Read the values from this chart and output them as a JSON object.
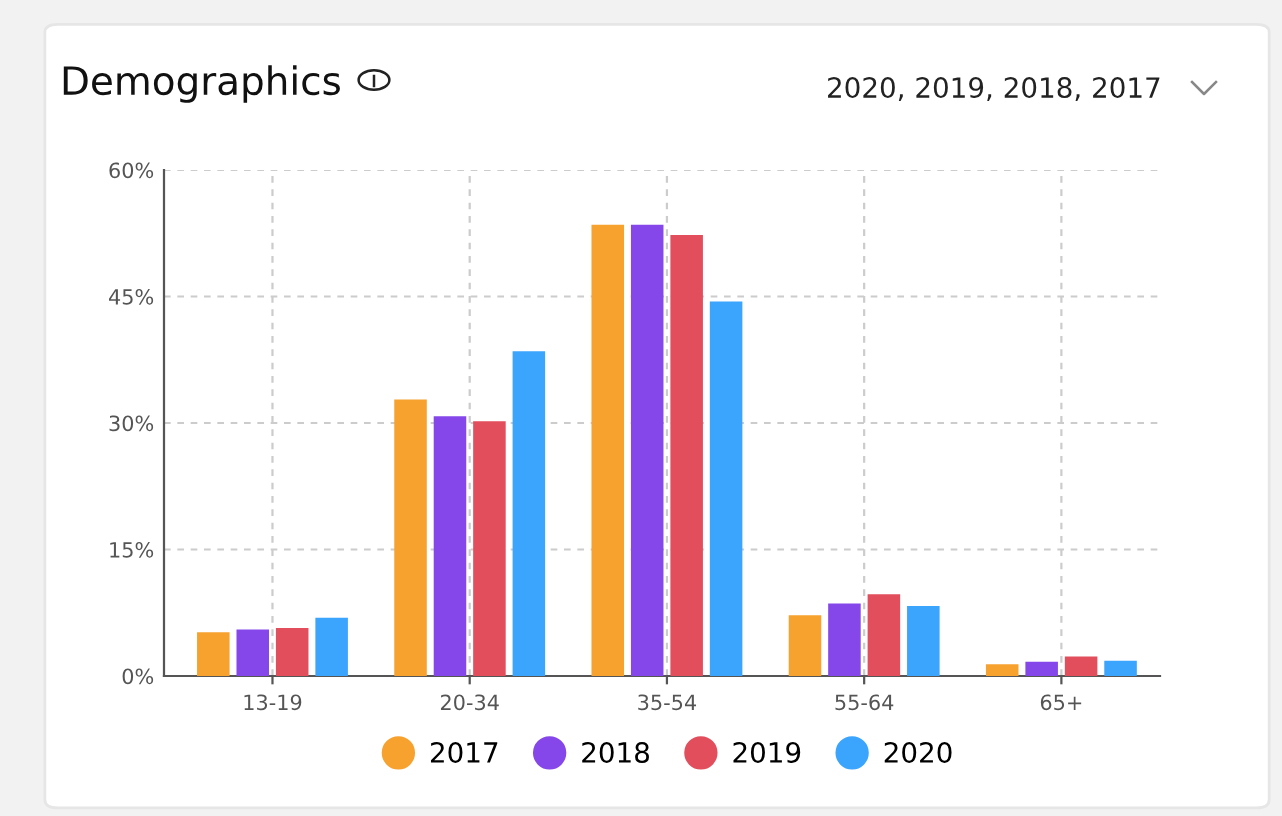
{
  "chart_data": {
    "type": "bar",
    "title": "Demographics",
    "subtitle": "2020, 2019, 2018, 2017",
    "categories": [
      "13-19",
      "20-34",
      "35-54",
      "55-64",
      "65+"
    ],
    "series": [
      {
        "name": "2017",
        "color": "#f7a22e",
        "values": [
          5.2,
          32.8,
          53.5,
          7.2,
          1.4
        ]
      },
      {
        "name": "2018",
        "color": "#8547ea",
        "values": [
          5.5,
          30.8,
          53.5,
          8.6,
          1.7
        ]
      },
      {
        "name": "2019",
        "color": "#e24e5c",
        "values": [
          5.7,
          30.2,
          52.3,
          9.7,
          2.3
        ]
      },
      {
        "name": "2020",
        "color": "#3ba4fc",
        "values": [
          6.9,
          38.5,
          44.4,
          8.3,
          1.8
        ]
      }
    ],
    "ylim": [
      0,
      60
    ],
    "yticks": [
      {
        "value": 0,
        "label": "0%"
      },
      {
        "value": 15,
        "label": "15%"
      },
      {
        "value": 30,
        "label": "30%"
      },
      {
        "value": 45,
        "label": "45%"
      },
      {
        "value": 60,
        "label": "60%"
      }
    ],
    "grid": true,
    "legend": "bottom",
    "marker": "circle"
  }
}
